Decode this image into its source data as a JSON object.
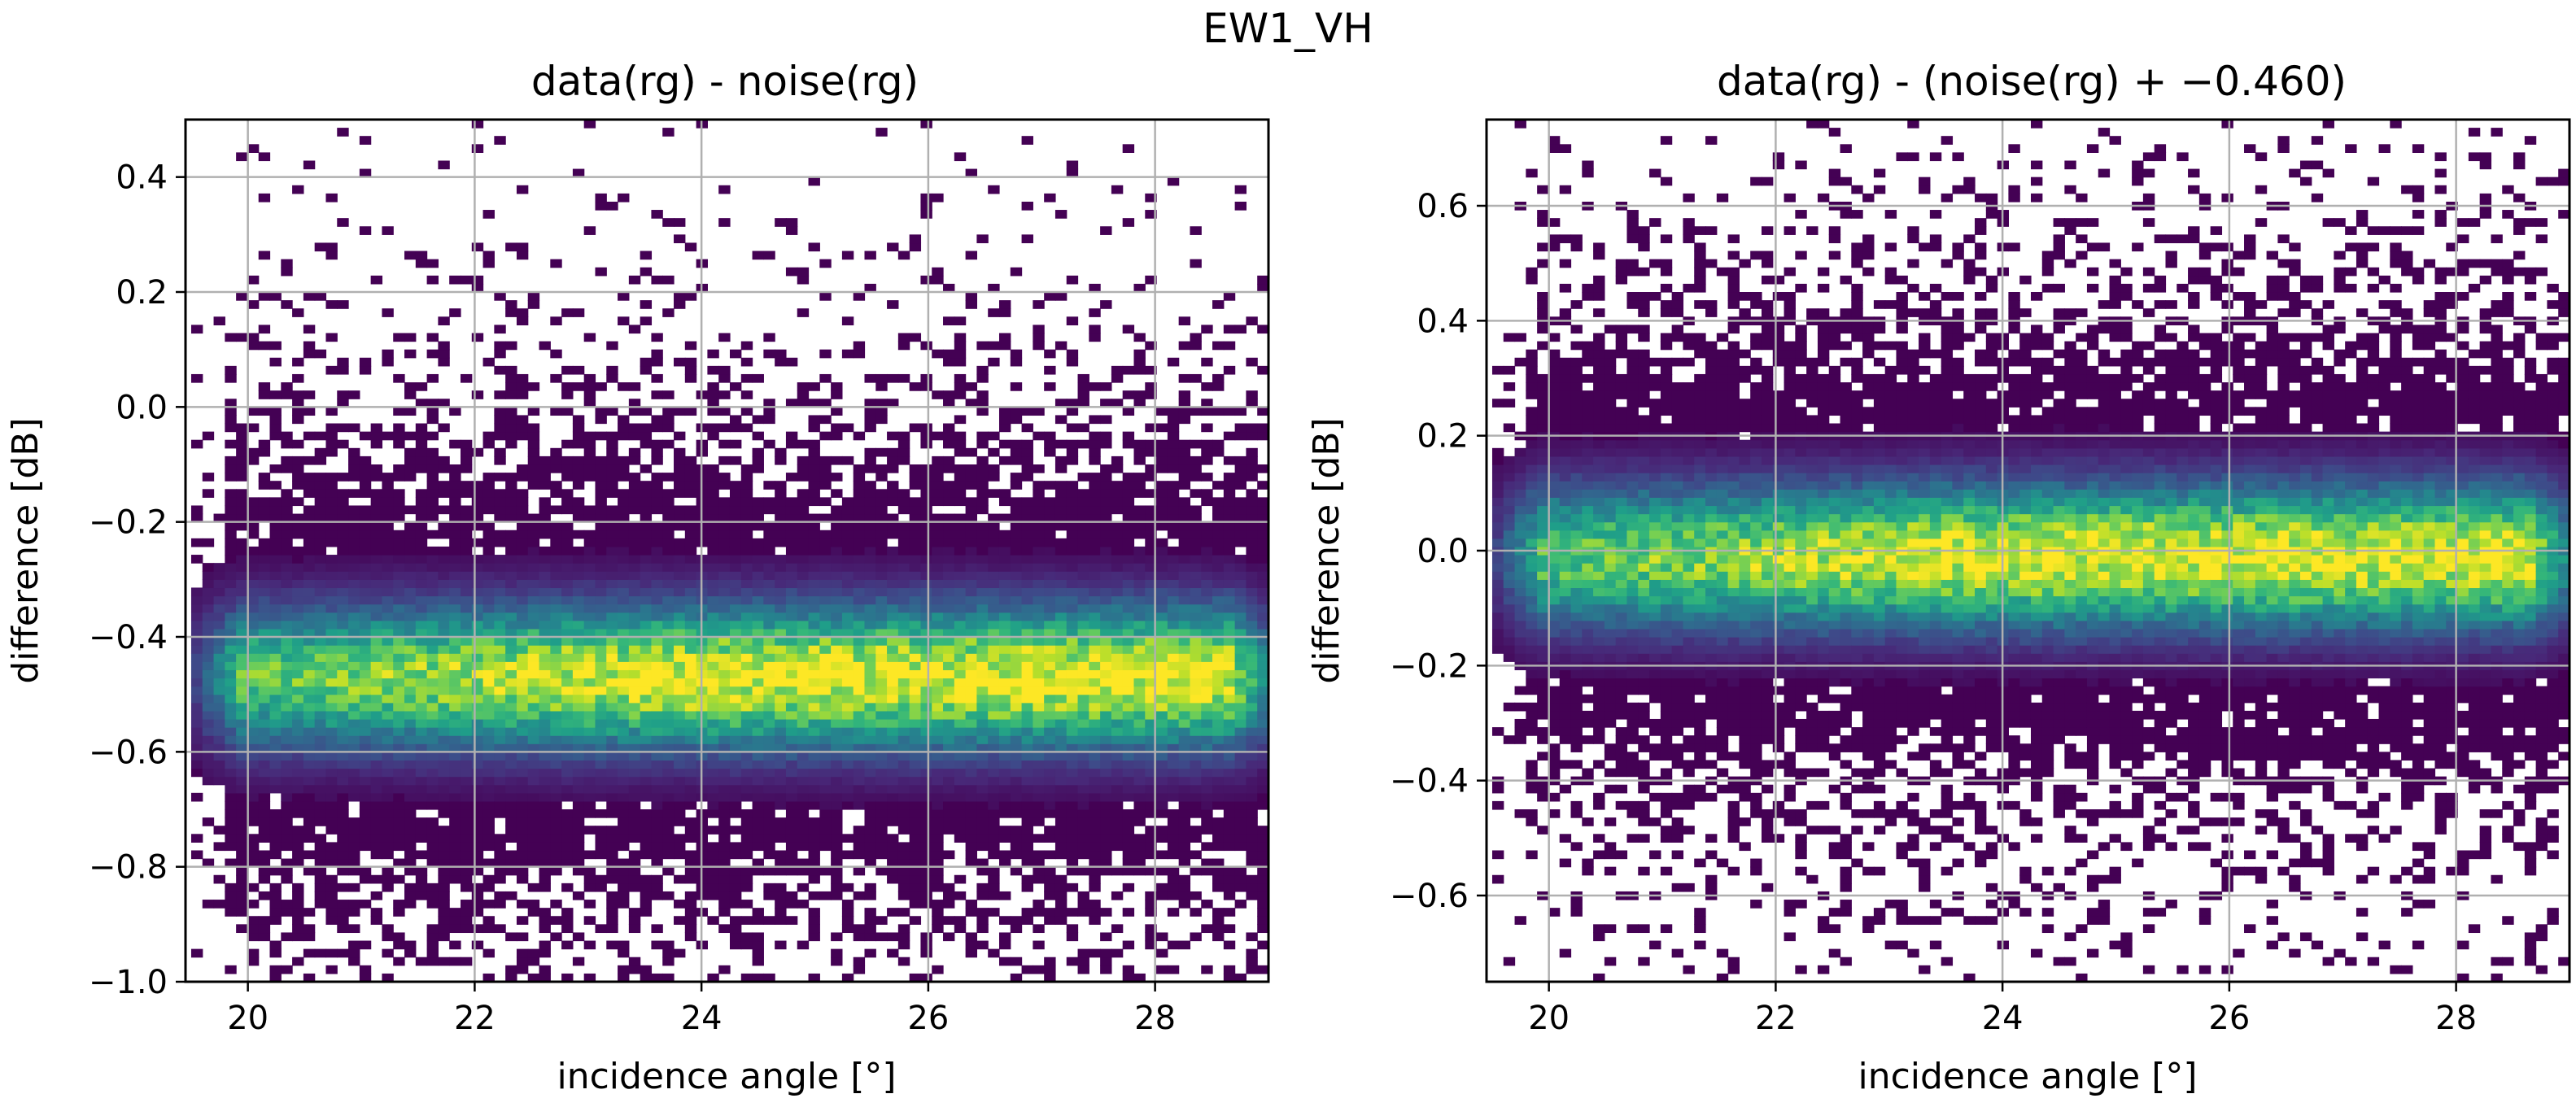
{
  "figure": {
    "suptitle": "EW1_VH"
  },
  "chart_data": [
    {
      "type": "heatmap",
      "title": "data(rg) - noise(rg)",
      "xlabel": "incidence angle [°]",
      "ylabel": "difference [dB]",
      "xlim": [
        19.45,
        29.0
      ],
      "ylim": [
        -1.0,
        0.5
      ],
      "xticks": [
        20,
        22,
        24,
        26,
        28
      ],
      "yticks": [
        -1.0,
        -0.8,
        -0.6,
        -0.4,
        -0.2,
        0.0,
        0.2,
        0.4
      ],
      "ytick_labels": [
        "−1.0",
        "−0.8",
        "−0.6",
        "−0.4",
        "−0.2",
        "0.0",
        "0.2",
        "0.4"
      ],
      "grid": true,
      "colormap": "viridis",
      "distribution": {
        "center_dB": -0.47,
        "core_spread_dB": 0.09,
        "dense_band_dB": [
          -0.75,
          -0.2
        ],
        "sparse_outliers_dB": [
          -1.0,
          0.37
        ],
        "peak_density_range_deg": [
          23.0,
          28.5
        ]
      }
    },
    {
      "type": "heatmap",
      "title": "data(rg) - (noise(rg) + −0.460)",
      "xlabel": "incidence angle [°]",
      "ylabel": "difference [dB]",
      "xlim": [
        19.45,
        29.0
      ],
      "ylim": [
        -0.75,
        0.75
      ],
      "xticks": [
        20,
        22,
        24,
        26,
        28
      ],
      "yticks": [
        -0.6,
        -0.4,
        -0.2,
        0.0,
        0.2,
        0.4,
        0.6
      ],
      "ytick_labels": [
        "−0.6",
        "−0.4",
        "−0.2",
        "0.0",
        "0.2",
        "0.4",
        "0.6"
      ],
      "grid": true,
      "colormap": "viridis",
      "distribution": {
        "center_dB": -0.01,
        "core_spread_dB": 0.09,
        "dense_band_dB": [
          -0.3,
          0.25
        ],
        "sparse_outliers_dB": [
          -0.74,
          0.74
        ],
        "peak_density_range_deg": [
          23.0,
          28.5
        ]
      }
    }
  ]
}
